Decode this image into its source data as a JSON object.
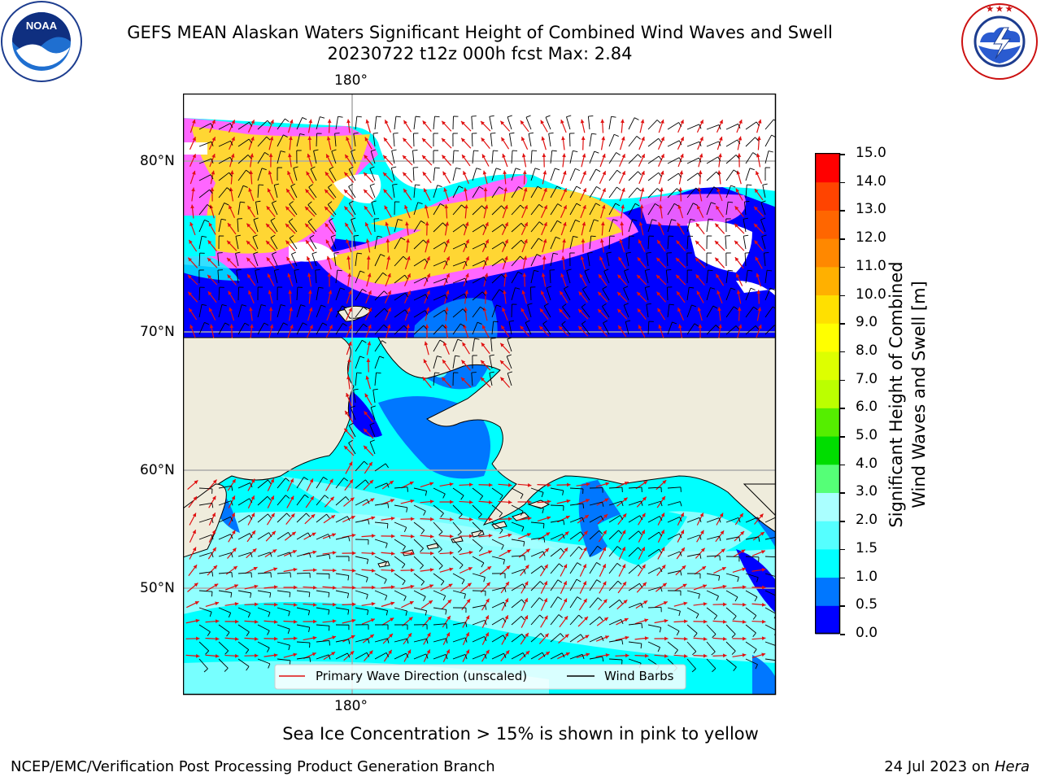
{
  "header": {
    "title_line1": "GEFS MEAN Alaskan Waters Significant Height of Combined Wind Waves and Swell",
    "title_line2": "20230722 t12z 000h fcst   Max: 2.84"
  },
  "logos": {
    "left": "noaa-logo",
    "left_text": "NOAA",
    "left_ring_text": "NATIONAL OCEANIC AND ATMOSPHERIC ADMINISTRATION · U.S. DEPARTMENT OF COMMERCE",
    "right": "nws-logo",
    "right_ring_text": "NATIONAL WEATHER SERVICE"
  },
  "map": {
    "lon_label_top": "180°",
    "lon_label_bottom": "180°",
    "lat_labels": [
      "80°N",
      "70°N",
      "60°N",
      "50°N"
    ],
    "legend": {
      "wave_dir": "Primary Wave Direction (unscaled)",
      "wind_barbs": "Wind Barbs"
    },
    "colors": {
      "land": "#efecdc",
      "ice_pink": "#ff66ff",
      "ice_yellow": "#ffd633",
      "arrow": "#e01010",
      "barb": "#000000"
    }
  },
  "colorbar": {
    "ticks": [
      "0.0",
      "0.5",
      "1.0",
      "1.5",
      "2.0",
      "3.0",
      "4.0",
      "5.0",
      "6.0",
      "7.0",
      "8.0",
      "9.0",
      "10.0",
      "11.0",
      "12.0",
      "13.0",
      "14.0",
      "15.0"
    ],
    "colors": [
      "#0000ff",
      "#0077ff",
      "#00ffff",
      "#55ffff",
      "#aaffff",
      "#55ff77",
      "#00dd00",
      "#55ee00",
      "#bbff00",
      "#ddff00",
      "#ffff00",
      "#ffe000",
      "#ffb000",
      "#ff8800",
      "#ff6600",
      "#ff4400",
      "#ff0000"
    ],
    "label_line1": "Significant Height of Combined",
    "label_line2": "Wind Waves and Swell [m]"
  },
  "caption": "Sea Ice Concentration > 15% is shown in pink to yellow",
  "footer": {
    "left": "NCEP/EMC/Verification Post Processing Product Generation Branch",
    "date": "24 Jul 2023 on ",
    "machine": "Hera"
  }
}
